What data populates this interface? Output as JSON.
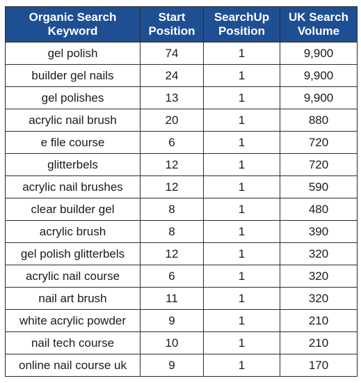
{
  "table": {
    "headers": [
      {
        "line1": "Organic Search",
        "line2": "Keyword"
      },
      {
        "line1": "Start",
        "line2": "Position"
      },
      {
        "line1": "SearchUp",
        "line2": "Position"
      },
      {
        "line1": "UK Search",
        "line2": "Volume"
      }
    ],
    "rows": [
      {
        "keyword": "gel polish",
        "start": "74",
        "searchup": "1",
        "volume": "9,900"
      },
      {
        "keyword": "builder gel nails",
        "start": "24",
        "searchup": "1",
        "volume": "9,900"
      },
      {
        "keyword": "gel polishes",
        "start": "13",
        "searchup": "1",
        "volume": "9,900"
      },
      {
        "keyword": "acrylic nail brush",
        "start": "20",
        "searchup": "1",
        "volume": "880"
      },
      {
        "keyword": "e file course",
        "start": "6",
        "searchup": "1",
        "volume": "720"
      },
      {
        "keyword": "glitterbels",
        "start": "12",
        "searchup": "1",
        "volume": "720"
      },
      {
        "keyword": "acrylic nail brushes",
        "start": "12",
        "searchup": "1",
        "volume": "590"
      },
      {
        "keyword": "clear builder gel",
        "start": "8",
        "searchup": "1",
        "volume": "480"
      },
      {
        "keyword": "acrylic brush",
        "start": "8",
        "searchup": "1",
        "volume": "390"
      },
      {
        "keyword": "gel polish glitterbels",
        "start": "12",
        "searchup": "1",
        "volume": "320"
      },
      {
        "keyword": "acrylic nail course",
        "start": "6",
        "searchup": "1",
        "volume": "320"
      },
      {
        "keyword": "nail art brush",
        "start": "11",
        "searchup": "1",
        "volume": "320"
      },
      {
        "keyword": "white acrylic powder",
        "start": "9",
        "searchup": "1",
        "volume": "210"
      },
      {
        "keyword": "nail tech course",
        "start": "10",
        "searchup": "1",
        "volume": "210"
      },
      {
        "keyword": "online nail course uk",
        "start": "9",
        "searchup": "1",
        "volume": "170"
      }
    ]
  },
  "colors": {
    "header_bg": "#1f4f93",
    "header_text": "#ffffff",
    "start_cell_bg": "#f4cccc",
    "searchup_cell_bg": "#93c47d",
    "border": "#2a2a2a"
  }
}
